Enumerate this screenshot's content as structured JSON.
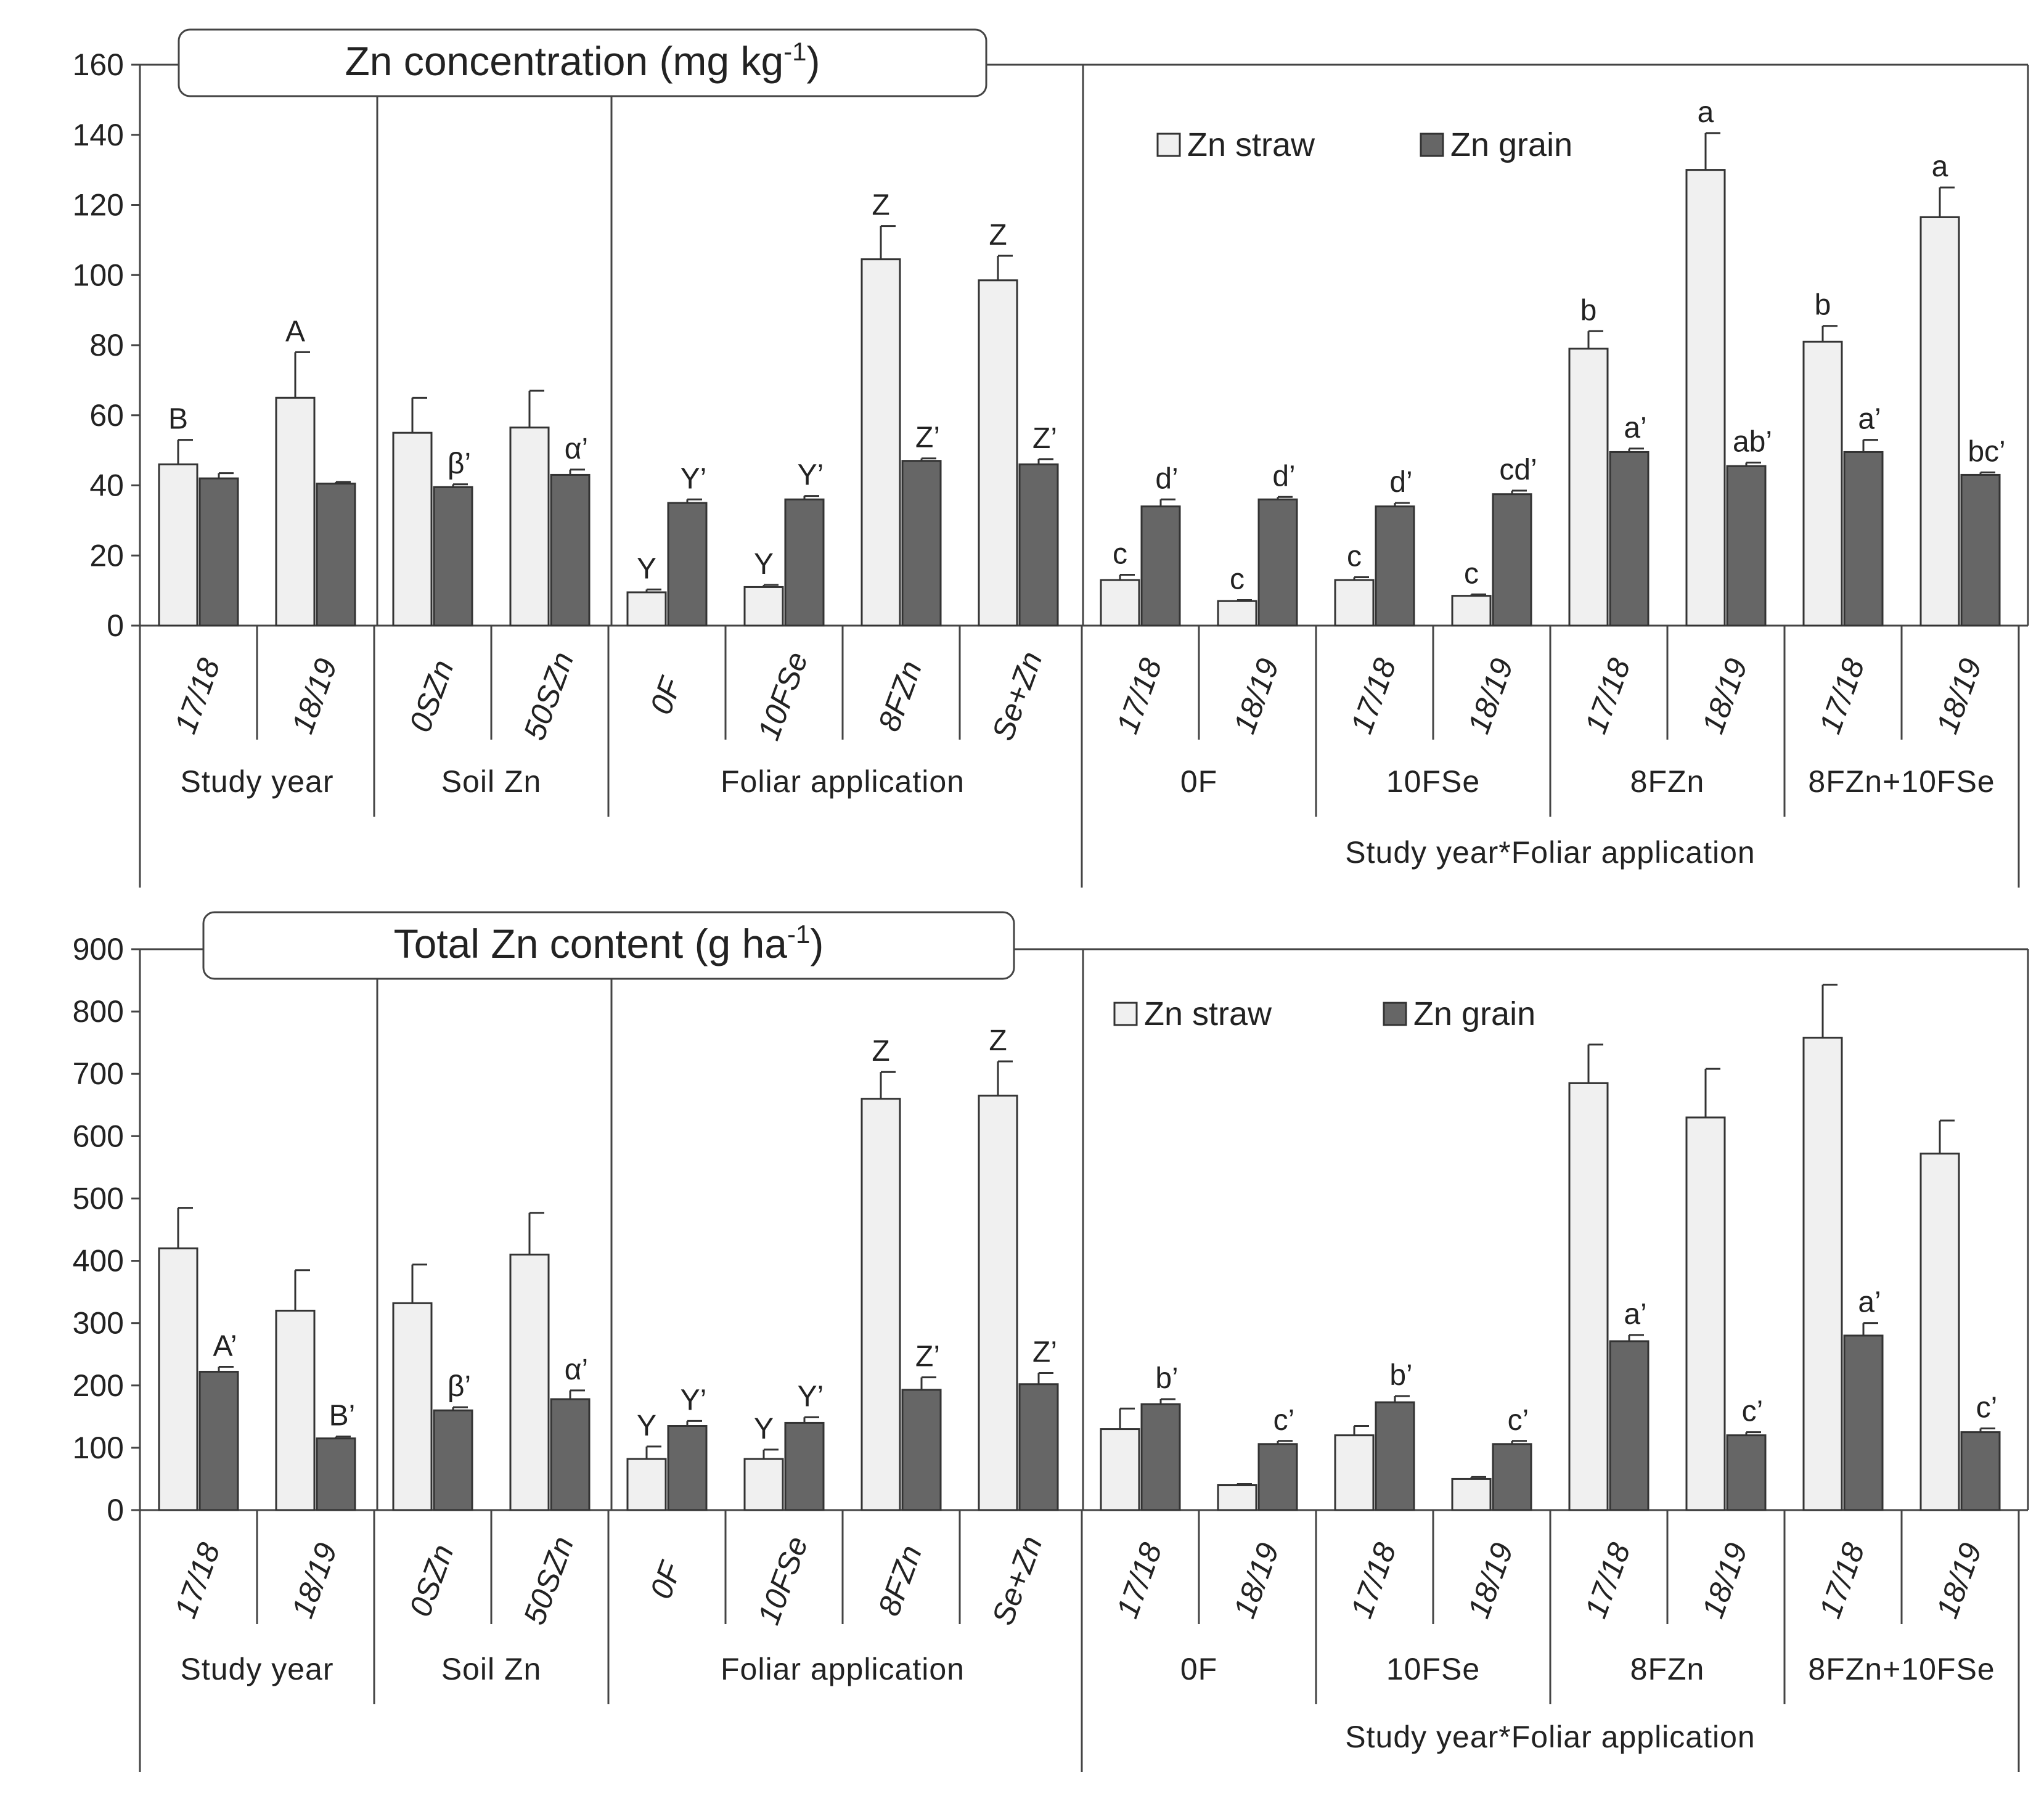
{
  "chart_data": [
    {
      "type": "bar",
      "title": "Zn concentration (mg kg",
      "title_sup": "-1",
      "title_end": ")",
      "ylim": [
        0,
        160
      ],
      "yticks": [
        0,
        20,
        40,
        60,
        80,
        100,
        120,
        140,
        160
      ],
      "legend": [
        "Zn straw",
        "Zn grain"
      ],
      "legend_position": "top-right",
      "series_colors": [
        "#f0f0f0",
        "#666666"
      ],
      "groups": [
        "Study year",
        "Soil Zn",
        "Foliar application",
        "Study year*Foliar application"
      ],
      "subgroups": [
        "0F",
        "10FSe",
        "8FZn",
        "8FZn+10FSe"
      ],
      "categories": [
        {
          "label": "17/18",
          "straw": 46,
          "straw_err": 7,
          "grain": 42,
          "grain_err": 1.5,
          "straw_sig": "B",
          "grain_sig": ""
        },
        {
          "label": "18/19",
          "straw": 65,
          "straw_err": 13,
          "grain": 40.5,
          "grain_err": 0.5,
          "straw_sig": "A",
          "grain_sig": ""
        },
        {
          "label": "0SZn",
          "straw": 55,
          "straw_err": 10,
          "grain": 39.5,
          "grain_err": 0.8,
          "straw_sig": "",
          "grain_sig": "β’"
        },
        {
          "label": "50SZn",
          "straw": 56.5,
          "straw_err": 10.5,
          "grain": 43,
          "grain_err": 1.5,
          "straw_sig": "",
          "grain_sig": "α’"
        },
        {
          "label": "0F",
          "straw": 9.5,
          "straw_err": 0.8,
          "grain": 35,
          "grain_err": 1,
          "straw_sig": "Y",
          "grain_sig": "Y’"
        },
        {
          "label": "10FSe",
          "straw": 11,
          "straw_err": 0.6,
          "grain": 36,
          "grain_err": 1,
          "straw_sig": "Y",
          "grain_sig": "Y’"
        },
        {
          "label": "8FZn",
          "straw": 104.5,
          "straw_err": 9.5,
          "grain": 47,
          "grain_err": 0.7,
          "straw_sig": "Z",
          "grain_sig": "Z’"
        },
        {
          "label": "Se+Zn",
          "straw": 98.5,
          "straw_err": 7,
          "grain": 46,
          "grain_err": 1.5,
          "straw_sig": "Z",
          "grain_sig": "Z’"
        },
        {
          "label": "17/18",
          "straw": 13,
          "straw_err": 1.5,
          "grain": 34,
          "grain_err": 2,
          "straw_sig": "c",
          "grain_sig": "d’"
        },
        {
          "label": "18/19",
          "straw": 7,
          "straw_err": 0.3,
          "grain": 36,
          "grain_err": 0.7,
          "straw_sig": "c",
          "grain_sig": "d’"
        },
        {
          "label": "17/18",
          "straw": 13,
          "straw_err": 0.8,
          "grain": 34,
          "grain_err": 1,
          "straw_sig": "c",
          "grain_sig": "d’"
        },
        {
          "label": "18/19",
          "straw": 8.5,
          "straw_err": 0.4,
          "grain": 37.5,
          "grain_err": 1,
          "straw_sig": "c",
          "grain_sig": "cd’"
        },
        {
          "label": "17/18",
          "straw": 79,
          "straw_err": 5,
          "grain": 49.5,
          "grain_err": 1,
          "straw_sig": "b",
          "grain_sig": "a’"
        },
        {
          "label": "18/19",
          "straw": 130,
          "straw_err": 10.5,
          "grain": 45.5,
          "grain_err": 1,
          "straw_sig": "a",
          "grain_sig": "ab’"
        },
        {
          "label": "17/18",
          "straw": 81,
          "straw_err": 4.5,
          "grain": 49.5,
          "grain_err": 3.5,
          "straw_sig": "b",
          "grain_sig": "a’"
        },
        {
          "label": "18/19",
          "straw": 116.5,
          "straw_err": 8.5,
          "grain": 43,
          "grain_err": 0.7,
          "straw_sig": "a",
          "grain_sig": "bc’"
        }
      ]
    },
    {
      "type": "bar",
      "title": "Total Zn content (g ha",
      "title_sup": "-1",
      "title_end": ")",
      "ylim": [
        0,
        900
      ],
      "yticks": [
        0,
        100,
        200,
        300,
        400,
        500,
        600,
        700,
        800,
        900
      ],
      "legend": [
        "Zn straw",
        "Zn grain"
      ],
      "legend_position": "top-right",
      "series_colors": [
        "#f0f0f0",
        "#666666"
      ],
      "groups": [
        "Study year",
        "Soil Zn",
        "Foliar application",
        "Study year*Foliar application"
      ],
      "subgroups": [
        "0F",
        "10FSe",
        "8FZn",
        "8FZn+10FSe"
      ],
      "categories": [
        {
          "label": "17/18",
          "straw": 420,
          "straw_err": 65,
          "grain": 222,
          "grain_err": 8,
          "straw_sig": "",
          "grain_sig": "A’"
        },
        {
          "label": "18/19",
          "straw": 320,
          "straw_err": 65,
          "grain": 115,
          "grain_err": 3,
          "straw_sig": "",
          "grain_sig": "B’"
        },
        {
          "label": "0SZn",
          "straw": 332,
          "straw_err": 62,
          "grain": 160,
          "grain_err": 5,
          "straw_sig": "",
          "grain_sig": "β’"
        },
        {
          "label": "50SZn",
          "straw": 410,
          "straw_err": 67,
          "grain": 178,
          "grain_err": 14,
          "straw_sig": "",
          "grain_sig": "α’"
        },
        {
          "label": "0F",
          "straw": 82,
          "straw_err": 20,
          "grain": 135,
          "grain_err": 8,
          "straw_sig": "Y",
          "grain_sig": "Y’"
        },
        {
          "label": "10FSe",
          "straw": 82,
          "straw_err": 15,
          "grain": 140,
          "grain_err": 9,
          "straw_sig": "Y",
          "grain_sig": "Y’"
        },
        {
          "label": "8FZn",
          "straw": 660,
          "straw_err": 43,
          "grain": 193,
          "grain_err": 20,
          "straw_sig": "Z",
          "grain_sig": "Z’"
        },
        {
          "label": "Se+Zn",
          "straw": 665,
          "straw_err": 55,
          "grain": 202,
          "grain_err": 18,
          "straw_sig": "Z",
          "grain_sig": "Z’"
        },
        {
          "label": "17/18",
          "straw": 130,
          "straw_err": 33,
          "grain": 170,
          "grain_err": 8,
          "straw_sig": "",
          "grain_sig": "b’"
        },
        {
          "label": "18/19",
          "straw": 40,
          "straw_err": 2,
          "grain": 106,
          "grain_err": 5,
          "straw_sig": "",
          "grain_sig": "c’"
        },
        {
          "label": "17/18",
          "straw": 120,
          "straw_err": 15,
          "grain": 173,
          "grain_err": 10,
          "straw_sig": "",
          "grain_sig": "b’"
        },
        {
          "label": "18/19",
          "straw": 50,
          "straw_err": 3,
          "grain": 106,
          "grain_err": 5,
          "straw_sig": "",
          "grain_sig": "c’"
        },
        {
          "label": "17/18",
          "straw": 685,
          "straw_err": 62,
          "grain": 271,
          "grain_err": 10,
          "straw_sig": "",
          "grain_sig": "a’"
        },
        {
          "label": "18/19",
          "straw": 630,
          "straw_err": 78,
          "grain": 120,
          "grain_err": 5,
          "straw_sig": "",
          "grain_sig": "c’"
        },
        {
          "label": "17/18",
          "straw": 758,
          "straw_err": 85,
          "grain": 280,
          "grain_err": 20,
          "straw_sig": "",
          "grain_sig": "a’"
        },
        {
          "label": "18/19",
          "straw": 572,
          "straw_err": 53,
          "grain": 125,
          "grain_err": 6,
          "straw_sig": "",
          "grain_sig": "c’"
        }
      ]
    }
  ]
}
